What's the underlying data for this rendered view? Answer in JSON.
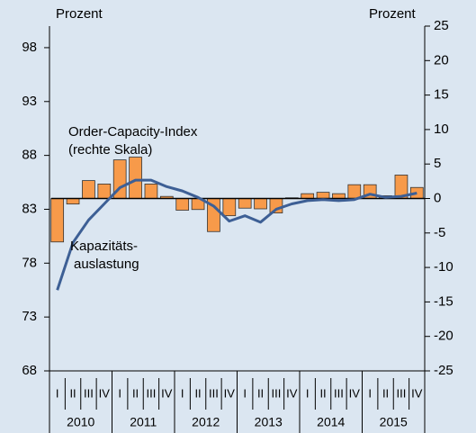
{
  "chart_data": {
    "type": "combo",
    "y_label": "Prozent",
    "y2_label": "Prozent",
    "categories": [
      "I",
      "II",
      "III",
      "IV",
      "I",
      "II",
      "III",
      "IV",
      "I",
      "II",
      "III",
      "IV",
      "I",
      "II",
      "III",
      "IV",
      "I",
      "II",
      "III",
      "IV",
      "I",
      "II",
      "III",
      "IV"
    ],
    "years": [
      "2010",
      "2011",
      "2012",
      "2013",
      "2014",
      "2015"
    ],
    "ylim": [
      68,
      100
    ],
    "yticks": [
      68,
      73,
      78,
      83,
      88,
      93,
      98
    ],
    "y2lim": [
      -25,
      25
    ],
    "y2ticks": [
      -25,
      -20,
      -15,
      -10,
      -5,
      0,
      5,
      10,
      15,
      20,
      25
    ],
    "series": [
      {
        "type": "bar",
        "axis": "y2",
        "color": "#f79a4a",
        "values": [
          -6.3,
          -0.8,
          2.6,
          2.1,
          5.6,
          6.0,
          2.1,
          0.3,
          -1.7,
          -1.6,
          -4.8,
          -2.5,
          -1.4,
          -1.5,
          -2.1,
          0.1,
          0.7,
          0.9,
          0.7,
          2.0,
          2.0,
          0.4,
          3.4,
          1.6
        ]
      },
      {
        "type": "line",
        "axis": "y",
        "color": "#3d5f95",
        "values": [
          75.5,
          79.9,
          82.0,
          83.5,
          85.0,
          85.7,
          85.7,
          85.1,
          84.7,
          84.1,
          83.3,
          81.9,
          82.4,
          81.8,
          83.0,
          83.5,
          83.8,
          83.9,
          83.8,
          83.9,
          84.4,
          84.1,
          84.2,
          84.5
        ]
      }
    ],
    "annotations": [
      {
        "lines": [
          "Order-Capacity-Index",
          "(rechte Skala)"
        ]
      },
      {
        "lines": [
          "Kapazitäts-",
          "auslastung"
        ]
      }
    ]
  }
}
